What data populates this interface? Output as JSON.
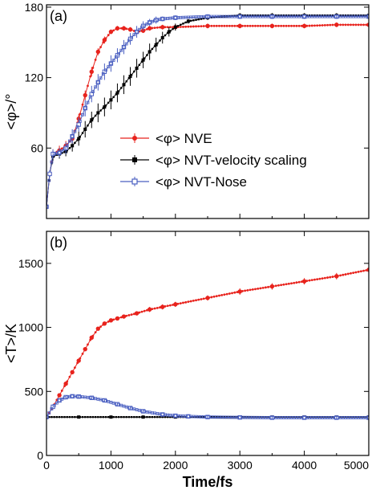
{
  "chart_data": [
    {
      "panel": "(a)",
      "type": "line",
      "title": "",
      "xlabel": "",
      "ylabel": "<φ>/°",
      "xlim": [
        0,
        5000
      ],
      "ylim": [
        0,
        182
      ],
      "xticks": [
        0,
        1000,
        2000,
        3000,
        4000,
        5000
      ],
      "show_x_ticklabels": false,
      "yticks": [
        60,
        120,
        180
      ],
      "ytick_labels": [
        "60",
        "120",
        "180"
      ],
      "error_bars": true,
      "legend": {
        "placement": "center-right"
      },
      "series": [
        {
          "name": "<φ>  NVE",
          "color": "#e8231d",
          "marker": "filled-circle",
          "points": [
            [
              0,
              10
            ],
            [
              50,
              38
            ],
            [
              100,
              55
            ],
            [
              200,
              58
            ],
            [
              300,
              62
            ],
            [
              400,
              68
            ],
            [
              500,
              85
            ],
            [
              600,
              105
            ],
            [
              700,
              125
            ],
            [
              800,
              142
            ],
            [
              900,
              152
            ],
            [
              1000,
              159
            ],
            [
              1100,
              162
            ],
            [
              1200,
              162
            ],
            [
              1300,
              161
            ],
            [
              1400,
              159
            ],
            [
              1500,
              160
            ],
            [
              1600,
              162
            ],
            [
              1800,
              163
            ],
            [
              2000,
              163
            ],
            [
              2500,
              164
            ],
            [
              3000,
              164
            ],
            [
              3500,
              164
            ],
            [
              4000,
              164
            ],
            [
              4500,
              165
            ],
            [
              5000,
              165
            ]
          ],
          "errors": [
            0,
            3,
            4,
            4,
            4,
            4,
            4,
            4,
            4,
            3,
            3,
            2,
            2,
            2,
            2,
            2,
            2,
            2,
            2,
            2,
            2,
            2,
            2,
            2,
            2,
            2
          ]
        },
        {
          "name": "<φ>  NVT-velocity scaling",
          "color": "#000000",
          "marker": "filled-square",
          "points": [
            [
              0,
              10
            ],
            [
              50,
              38
            ],
            [
              100,
              53
            ],
            [
              200,
              55
            ],
            [
              300,
              57
            ],
            [
              400,
              62
            ],
            [
              500,
              68
            ],
            [
              600,
              76
            ],
            [
              700,
              84
            ],
            [
              800,
              90
            ],
            [
              900,
              95
            ],
            [
              1000,
              101
            ],
            [
              1100,
              107
            ],
            [
              1200,
              114
            ],
            [
              1300,
              121
            ],
            [
              1400,
              128
            ],
            [
              1500,
              135
            ],
            [
              1600,
              142
            ],
            [
              1700,
              148
            ],
            [
              1800,
              154
            ],
            [
              1900,
              159
            ],
            [
              2000,
              163
            ],
            [
              2200,
              168
            ],
            [
              2500,
              171
            ],
            [
              3000,
              173
            ],
            [
              3500,
              173
            ],
            [
              4000,
              173
            ],
            [
              4500,
              173
            ],
            [
              5000,
              173
            ]
          ],
          "errors": [
            0,
            3,
            4,
            4,
            4,
            5,
            6,
            7,
            7,
            8,
            8,
            8,
            8,
            8,
            8,
            8,
            7,
            7,
            6,
            5,
            4,
            3,
            2,
            2,
            2,
            2,
            2,
            2,
            2
          ]
        },
        {
          "name": "<φ>  NVT-Nose",
          "color": "#4a5fc1",
          "marker": "open-square",
          "points": [
            [
              0,
              10
            ],
            [
              50,
              38
            ],
            [
              100,
              55
            ],
            [
              200,
              56
            ],
            [
              300,
              60
            ],
            [
              400,
              70
            ],
            [
              500,
              80
            ],
            [
              600,
              94
            ],
            [
              700,
              106
            ],
            [
              800,
              116
            ],
            [
              900,
              125
            ],
            [
              1000,
              132
            ],
            [
              1100,
              139
            ],
            [
              1200,
              146
            ],
            [
              1300,
              153
            ],
            [
              1400,
              159
            ],
            [
              1500,
              164
            ],
            [
              1600,
              167
            ],
            [
              1700,
              169
            ],
            [
              1800,
              170
            ],
            [
              2000,
              171
            ],
            [
              2500,
              172
            ],
            [
              3000,
              172
            ],
            [
              3500,
              172
            ],
            [
              4000,
              172
            ],
            [
              4500,
              172
            ],
            [
              5000,
              172
            ]
          ],
          "errors": [
            0,
            3,
            4,
            4,
            5,
            6,
            6,
            7,
            7,
            7,
            7,
            7,
            6,
            6,
            5,
            5,
            4,
            3,
            3,
            2,
            2,
            2,
            2,
            2,
            2,
            2,
            2
          ]
        }
      ]
    },
    {
      "panel": "(b)",
      "type": "line",
      "title": "",
      "xlabel": "Time/fs",
      "ylabel": "<T>/K",
      "xlim": [
        0,
        5000
      ],
      "ylim": [
        0,
        1750
      ],
      "xticks": [
        0,
        1000,
        2000,
        3000,
        4000,
        5000
      ],
      "xtick_labels": [
        "0",
        "1000",
        "2000",
        "3000",
        "4000",
        "5000"
      ],
      "yticks": [
        0,
        500,
        1000,
        1500
      ],
      "ytick_labels": [
        "0",
        "500",
        "1000",
        "1500"
      ],
      "error_bars": true,
      "series": [
        {
          "name": "<φ>  NVE",
          "color": "#e8231d",
          "marker": "filled-circle",
          "points": [
            [
              0,
              300
            ],
            [
              100,
              380
            ],
            [
              200,
              470
            ],
            [
              300,
              560
            ],
            [
              400,
              650
            ],
            [
              500,
              740
            ],
            [
              600,
              830
            ],
            [
              700,
              920
            ],
            [
              800,
              990
            ],
            [
              900,
              1030
            ],
            [
              1000,
              1055
            ],
            [
              1100,
              1070
            ],
            [
              1200,
              1085
            ],
            [
              1400,
              1110
            ],
            [
              1600,
              1140
            ],
            [
              1800,
              1160
            ],
            [
              2000,
              1180
            ],
            [
              2500,
              1230
            ],
            [
              3000,
              1280
            ],
            [
              3500,
              1320
            ],
            [
              4000,
              1360
            ],
            [
              4500,
              1400
            ],
            [
              5000,
              1450
            ]
          ],
          "errors": [
            0,
            10,
            10,
            10,
            10,
            10,
            10,
            10,
            10,
            15,
            15,
            15,
            15,
            15,
            20,
            20,
            20,
            20,
            25,
            25,
            25,
            25,
            30
          ]
        },
        {
          "name": "<φ>  NVT-velocity scaling",
          "color": "#000000",
          "marker": "filled-square",
          "points": [
            [
              0,
              300
            ],
            [
              500,
              300
            ],
            [
              1000,
              300
            ],
            [
              1500,
              300
            ],
            [
              2000,
              300
            ],
            [
              2500,
              300
            ],
            [
              3000,
              300
            ],
            [
              3500,
              300
            ],
            [
              4000,
              300
            ],
            [
              4500,
              300
            ],
            [
              5000,
              300
            ]
          ],
          "errors": [
            0,
            0,
            0,
            0,
            0,
            0,
            0,
            0,
            0,
            0,
            0
          ]
        },
        {
          "name": "<φ>  NVT-Nose",
          "color": "#4a5fc1",
          "marker": "open-square",
          "points": [
            [
              0,
              300
            ],
            [
              100,
              380
            ],
            [
              200,
              430
            ],
            [
              300,
              455
            ],
            [
              400,
              462
            ],
            [
              500,
              460
            ],
            [
              700,
              450
            ],
            [
              900,
              430
            ],
            [
              1100,
              400
            ],
            [
              1300,
              370
            ],
            [
              1500,
              345
            ],
            [
              1800,
              320
            ],
            [
              2000,
              310
            ],
            [
              2200,
              305
            ],
            [
              2500,
              300
            ],
            [
              3000,
              297
            ],
            [
              3500,
              295
            ],
            [
              4000,
              295
            ],
            [
              4500,
              295
            ],
            [
              5000,
              295
            ]
          ],
          "errors": [
            0,
            10,
            10,
            10,
            10,
            10,
            10,
            10,
            10,
            10,
            8,
            8,
            6,
            5,
            5,
            5,
            5,
            5,
            5,
            5
          ]
        }
      ]
    }
  ]
}
